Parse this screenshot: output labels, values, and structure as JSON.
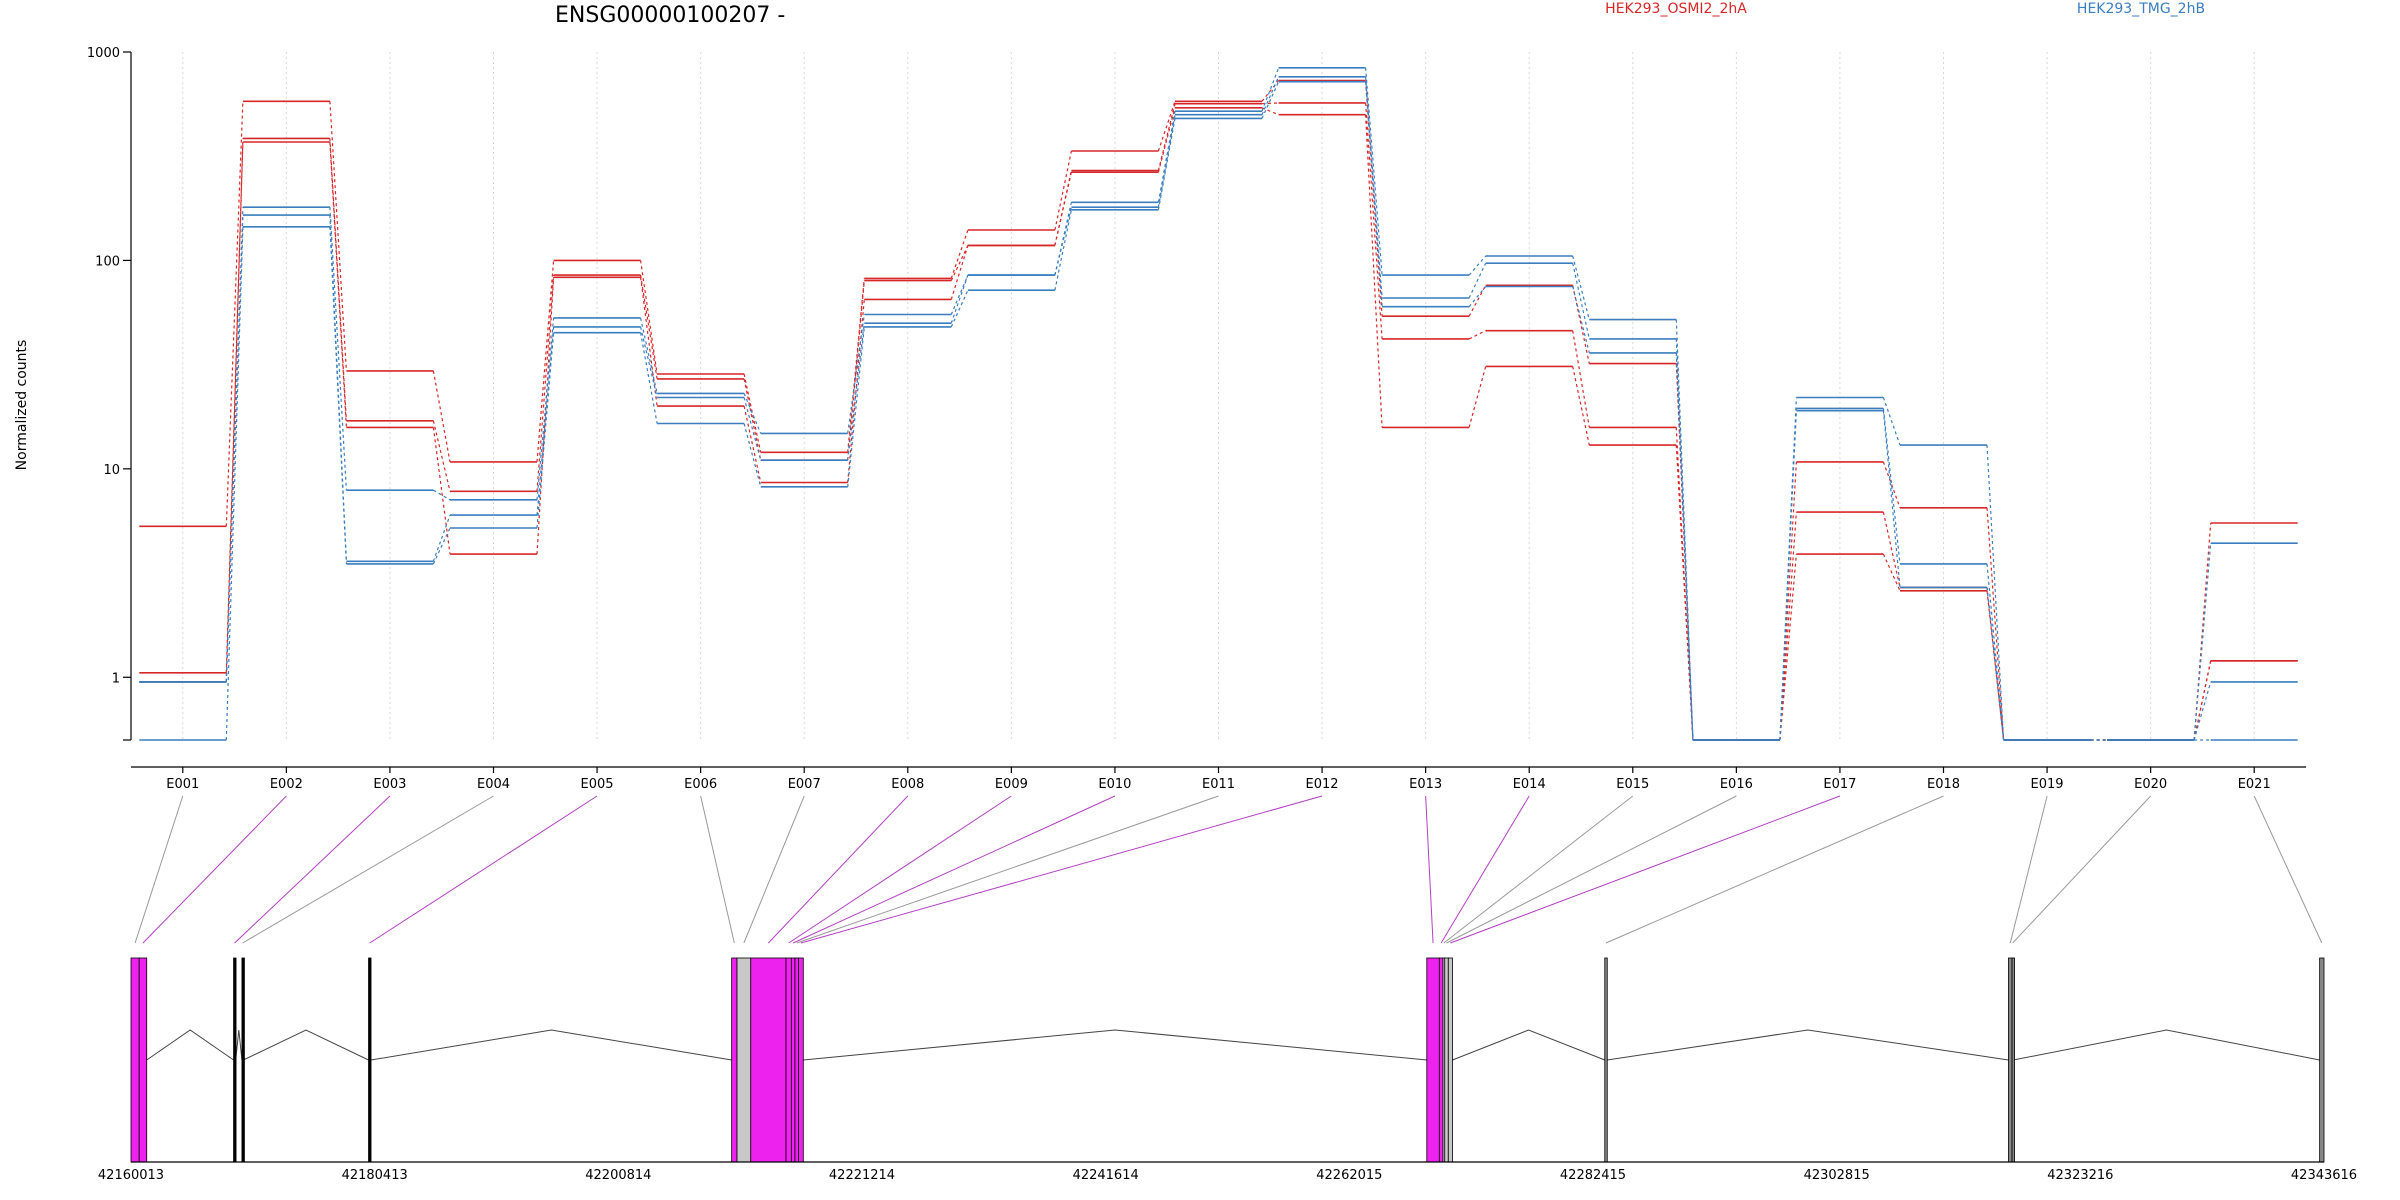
{
  "chart_data": {
    "type": "line",
    "title": "ENSG00000100207 -",
    "ylabel": "Normalized counts",
    "yscale": "log",
    "ylim": [
      0.5,
      1000
    ],
    "yticks": [
      1,
      10,
      100,
      1000
    ],
    "ytick_labels": [
      "1",
      "10",
      "100",
      "1000"
    ],
    "grid": "vertical dotted lines at each exon",
    "legend_placement": "top",
    "categories": [
      "E001",
      "E002",
      "E003",
      "E004",
      "E005",
      "E006",
      "E007",
      "E008",
      "E009",
      "E010",
      "E011",
      "E012",
      "E013",
      "E014",
      "E015",
      "E016",
      "E017",
      "E018",
      "E019",
      "E020",
      "E021"
    ],
    "legend": [
      {
        "label": "HEK293_OSMI2_2hA",
        "color": "#d62728"
      },
      {
        "label": "HEK293_TMG_2hB",
        "color": "#3a7ebf"
      }
    ],
    "series": [
      {
        "group": "HEK293_OSMI2_2hA",
        "color": "#d62728",
        "values": [
          5.3,
          580,
          29.5,
          10.8,
          100,
          28.5,
          12,
          82,
          140,
          335,
          580,
          730,
          54,
          76,
          32,
          0.5,
          10.8,
          6.5,
          0.5,
          0.5,
          5.5
        ]
      },
      {
        "group": "HEK293_OSMI2_2hA",
        "color": "#d62728",
        "values": [
          1.05,
          385,
          17,
          7.8,
          85,
          27,
          11,
          80,
          118,
          270,
          565,
          570,
          42,
          46,
          15.8,
          0.5,
          6.2,
          2.7,
          0.5,
          0.5,
          1.2
        ]
      },
      {
        "group": "HEK293_OSMI2_2hA",
        "color": "#d62728",
        "values": [
          0.95,
          370,
          15.8,
          3.9,
          83,
          20,
          8.6,
          65,
          118,
          265,
          540,
          500,
          15.8,
          31,
          13,
          0.5,
          3.9,
          2.6,
          0.5,
          0.5,
          1.2
        ]
      },
      {
        "group": "HEK293_TMG_2hB",
        "color": "#3a7ebf",
        "values": [
          0.95,
          180,
          7.9,
          7.1,
          53,
          23,
          14.8,
          55,
          85,
          190,
          520,
          840,
          85,
          105,
          52,
          0.5,
          22,
          13,
          0.5,
          0.5,
          4.4
        ]
      },
      {
        "group": "HEK293_TMG_2hB",
        "color": "#3a7ebf",
        "values": [
          0.95,
          165,
          3.6,
          6,
          48,
          22,
          11,
          50,
          85,
          180,
          500,
          760,
          66,
          97,
          42,
          0.5,
          19.5,
          3.5,
          0.5,
          0.5,
          0.95
        ]
      },
      {
        "group": "HEK293_TMG_2hB",
        "color": "#3a7ebf",
        "values": [
          0.5,
          145,
          3.5,
          5.2,
          45,
          16.5,
          8.2,
          48,
          72,
          175,
          480,
          720,
          60,
          75,
          36,
          0.5,
          19,
          2.7,
          0.5,
          0.5,
          0.5
        ]
      }
    ],
    "gene_model": {
      "genomic_ticks": [
        "42160013",
        "42180413",
        "42200814",
        "42221214",
        "42241614",
        "42262015",
        "42282415",
        "42302815",
        "42323216",
        "42343616"
      ],
      "genomic_range": [
        42160013,
        42343616
      ],
      "exons": [
        {
          "label": "E001",
          "start": 42160013,
          "end": 42160700,
          "color": "#ee22ee"
        },
        {
          "label": "E002",
          "start": 42160700,
          "end": 42161330,
          "color": "#ee22ee"
        },
        {
          "label": "E003",
          "start": 42168600,
          "end": 42168780,
          "color": "#000000"
        },
        {
          "label": "E004",
          "start": 42169300,
          "end": 42169420,
          "color": "#000000"
        },
        {
          "label": "E005",
          "start": 42179900,
          "end": 42180100,
          "color": "#000000"
        },
        {
          "label": "E006",
          "start": 42210300,
          "end": 42210750,
          "color": "#ee22ee"
        },
        {
          "label": "E007",
          "start": 42210750,
          "end": 42211900,
          "color": "#c8c8c8"
        },
        {
          "label": "E008",
          "start": 42211900,
          "end": 42214850,
          "color": "#ee22ee"
        },
        {
          "label": "E009",
          "start": 42214850,
          "end": 42215300,
          "color": "#ee22ee"
        },
        {
          "label": "E010",
          "start": 42215300,
          "end": 42215600,
          "color": "#ee22ee"
        },
        {
          "label": "E011",
          "start": 42215600,
          "end": 42215900,
          "color": "#ee22ee"
        },
        {
          "label": "E012",
          "start": 42215900,
          "end": 42216300,
          "color": "#ee22ee"
        },
        {
          "label": "E013",
          "start": 42268500,
          "end": 42269550,
          "color": "#ee22ee"
        },
        {
          "label": "E014",
          "start": 42269550,
          "end": 42269850,
          "color": "#ee22ee"
        },
        {
          "label": "E015",
          "start": 42269850,
          "end": 42270000,
          "color": "#c8c8c8"
        },
        {
          "label": "E016",
          "start": 42270000,
          "end": 42270300,
          "color": "#c8c8c8"
        },
        {
          "label": "E017",
          "start": 42270300,
          "end": 42270650,
          "color": "#c8c8c8"
        },
        {
          "label": "E018",
          "start": 42283400,
          "end": 42283600,
          "color": "#888888"
        },
        {
          "label": "E019",
          "start": 42317200,
          "end": 42317500,
          "color": "#888888"
        },
        {
          "label": "E020",
          "start": 42317500,
          "end": 42317600,
          "color": "#888888"
        },
        {
          "label": "E021",
          "start": 42343250,
          "end": 42343616,
          "color": "#888888"
        }
      ],
      "connector_colors": [
        "#999999",
        "#b040c0",
        "#b040c0",
        "#999999",
        "#b040c0",
        "#999999",
        "#999999",
        "#b040c0",
        "#b040c0",
        "#b040c0",
        "#999999",
        "#b040c0",
        "#b040c0",
        "#b040c0",
        "#999999",
        "#999999",
        "#b040c0",
        "#999999",
        "#999999",
        "#999999",
        "#999999"
      ],
      "intron_hops": [
        [
          42161330,
          42168600
        ],
        [
          42168780,
          42169300
        ],
        [
          42169420,
          42179900
        ],
        [
          42180100,
          42210300
        ],
        [
          42216300,
          42268500
        ],
        [
          42270650,
          42283400
        ],
        [
          42283600,
          42317200
        ],
        [
          42317600,
          42343250
        ]
      ]
    }
  }
}
